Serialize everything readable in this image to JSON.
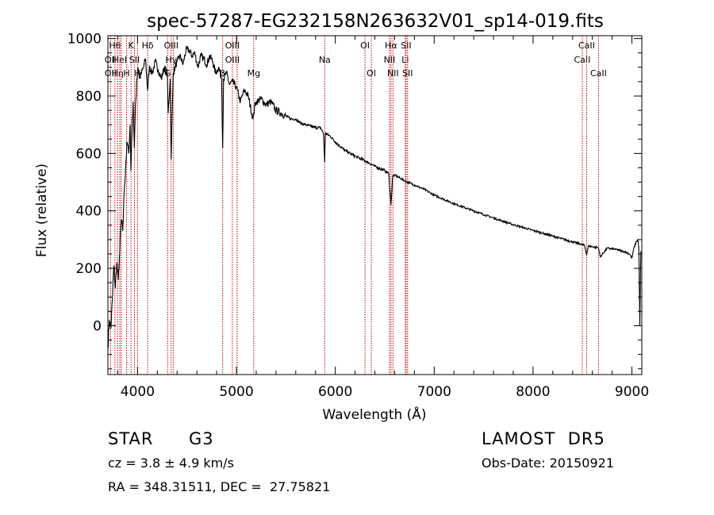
{
  "chart_data": {
    "type": "line",
    "title": "spec-57287-EG232158N263632V01_sp14-019.fits",
    "xlabel": "Wavelength (Å)",
    "ylabel": "Flux (relative)",
    "xlim": [
      3700,
      9100
    ],
    "ylim": [
      -170,
      1010
    ],
    "x_ticks": [
      4000,
      5000,
      6000,
      7000,
      8000,
      9000
    ],
    "y_ticks": [
      0,
      200,
      400,
      600,
      800,
      1000
    ],
    "grid": false,
    "series": [
      {
        "x": [
          3700,
          3715,
          3730,
          3745,
          3760,
          3775,
          3790,
          3805,
          3820,
          3835,
          3850,
          3865,
          3880,
          3895,
          3910,
          3925,
          3933,
          3940,
          3955,
          3968,
          3975,
          3990,
          4005,
          4020,
          4040,
          4060,
          4080,
          4102,
          4120,
          4150,
          4180,
          4210,
          4240,
          4270,
          4300,
          4310,
          4330,
          4340,
          4360,
          4380,
          4400,
          4430,
          4460,
          4490,
          4520,
          4550,
          4580,
          4610,
          4640,
          4670,
          4700,
          4730,
          4760,
          4790,
          4820,
          4850,
          4861,
          4870,
          4900,
          4930,
          4960,
          5000,
          5040,
          5080,
          5120,
          5167,
          5183,
          5200,
          5250,
          5300,
          5350,
          5400,
          5450,
          5500,
          5550,
          5600,
          5650,
          5700,
          5750,
          5800,
          5850,
          5880,
          5893,
          5900,
          5950,
          6000,
          6100,
          6200,
          6300,
          6400,
          6500,
          6540,
          6563,
          6580,
          6600,
          6700,
          6800,
          6900,
          7000,
          7200,
          7400,
          7600,
          7800,
          8000,
          8200,
          8400,
          8498,
          8520,
          8542,
          8560,
          8600,
          8662,
          8680,
          8750,
          8850,
          8950,
          8980,
          9000,
          9020,
          9040,
          9060,
          9070,
          9080,
          9090
        ],
        "y": [
          -80,
          20,
          -10,
          90,
          210,
          130,
          220,
          160,
          260,
          370,
          330,
          470,
          560,
          640,
          600,
          700,
          540,
          640,
          780,
          620,
          720,
          850,
          900,
          860,
          880,
          900,
          930,
          820,
          900,
          880,
          920,
          890,
          860,
          900,
          880,
          740,
          860,
          580,
          880,
          900,
          920,
          940,
          910,
          960,
          960,
          940,
          950,
          900,
          940,
          930,
          910,
          940,
          920,
          880,
          900,
          860,
          620,
          860,
          880,
          840,
          850,
          830,
          780,
          820,
          800,
          720,
          760,
          780,
          790,
          770,
          780,
          750,
          740,
          730,
          720,
          720,
          705,
          700,
          695,
          690,
          690,
          670,
          570,
          670,
          660,
          640,
          610,
          590,
          575,
          555,
          540,
          530,
          420,
          520,
          525,
          505,
          490,
          475,
          455,
          425,
          400,
          375,
          352,
          332,
          312,
          292,
          282,
          280,
          248,
          278,
          275,
          272,
          240,
          270,
          265,
          255,
          248,
          235,
          270,
          290,
          300,
          270,
          0,
          260
        ]
      }
    ],
    "lines": [
      {
        "wavelength": 3727,
        "labels": [
          "OII",
          "OII"
        ],
        "rows": [
          1,
          2
        ]
      },
      {
        "wavelength": 3771,
        "labels": [
          "Hθ"
        ],
        "rows": [
          0
        ]
      },
      {
        "wavelength": 3798,
        "labels": [
          "Hη"
        ],
        "rows": [
          2
        ]
      },
      {
        "wavelength": 3820,
        "labels": [
          "HeI"
        ],
        "rows": [
          1
        ]
      },
      {
        "wavelength": 3835,
        "labels": [],
        "rows": []
      },
      {
        "wavelength": 3889,
        "labels": [
          "H"
        ],
        "rows": [
          2
        ]
      },
      {
        "wavelength": 3934,
        "labels": [
          "K"
        ],
        "rows": [
          0
        ]
      },
      {
        "wavelength": 3969,
        "labels": [
          "SII"
        ],
        "rows": [
          1
        ]
      },
      {
        "wavelength": 4000,
        "labels": [
          "H"
        ],
        "rows": [
          2
        ]
      },
      {
        "wavelength": 4102,
        "labels": [
          "Hδ"
        ],
        "rows": [
          0
        ]
      },
      {
        "wavelength": 4304,
        "labels": [
          "G"
        ],
        "rows": [
          2
        ]
      },
      {
        "wavelength": 4340,
        "labels": [
          "OIII",
          "Hγ"
        ],
        "rows": [
          0,
          1
        ]
      },
      {
        "wavelength": 4363,
        "labels": [],
        "rows": []
      },
      {
        "wavelength": 4861,
        "labels": [
          "β"
        ],
        "rows": [
          2
        ]
      },
      {
        "wavelength": 4959,
        "labels": [
          "OIII",
          "OIII"
        ],
        "rows": [
          0,
          1
        ]
      },
      {
        "wavelength": 5007,
        "labels": [],
        "rows": []
      },
      {
        "wavelength": 5175,
        "labels": [
          "Mg"
        ],
        "rows": [
          2
        ]
      },
      {
        "wavelength": 5893,
        "labels": [
          "Na"
        ],
        "rows": [
          1
        ]
      },
      {
        "wavelength": 6300,
        "labels": [
          "OI"
        ],
        "rows": [
          0
        ]
      },
      {
        "wavelength": 6364,
        "labels": [
          "OI"
        ],
        "rows": [
          2
        ]
      },
      {
        "wavelength": 6548,
        "labels": [
          "NII"
        ],
        "rows": [
          1
        ]
      },
      {
        "wavelength": 6563,
        "labels": [
          "Hα"
        ],
        "rows": [
          0
        ]
      },
      {
        "wavelength": 6583,
        "labels": [
          "NII"
        ],
        "rows": [
          2
        ]
      },
      {
        "wavelength": 6708,
        "labels": [
          "Li"
        ],
        "rows": [
          1
        ]
      },
      {
        "wavelength": 6716,
        "labels": [
          "SII"
        ],
        "rows": [
          0
        ]
      },
      {
        "wavelength": 6731,
        "labels": [
          "SII"
        ],
        "rows": [
          2
        ]
      },
      {
        "wavelength": 8498,
        "labels": [
          "CaII"
        ],
        "rows": [
          1
        ]
      },
      {
        "wavelength": 8542,
        "labels": [
          "CaII"
        ],
        "rows": [
          0
        ]
      },
      {
        "wavelength": 8662,
        "labels": [
          "CaII"
        ],
        "rows": [
          2
        ]
      }
    ],
    "line_color": "#cc0000"
  },
  "info": {
    "object_class": "STAR",
    "subclass": "G3",
    "redshift": "cz = 3.8 ± 4.9 km/s",
    "coordinates": "RA = 348.31511, DEC =  27.75821",
    "survey": "LAMOST  DR5",
    "obs_date": "Obs-Date: 20150921"
  }
}
